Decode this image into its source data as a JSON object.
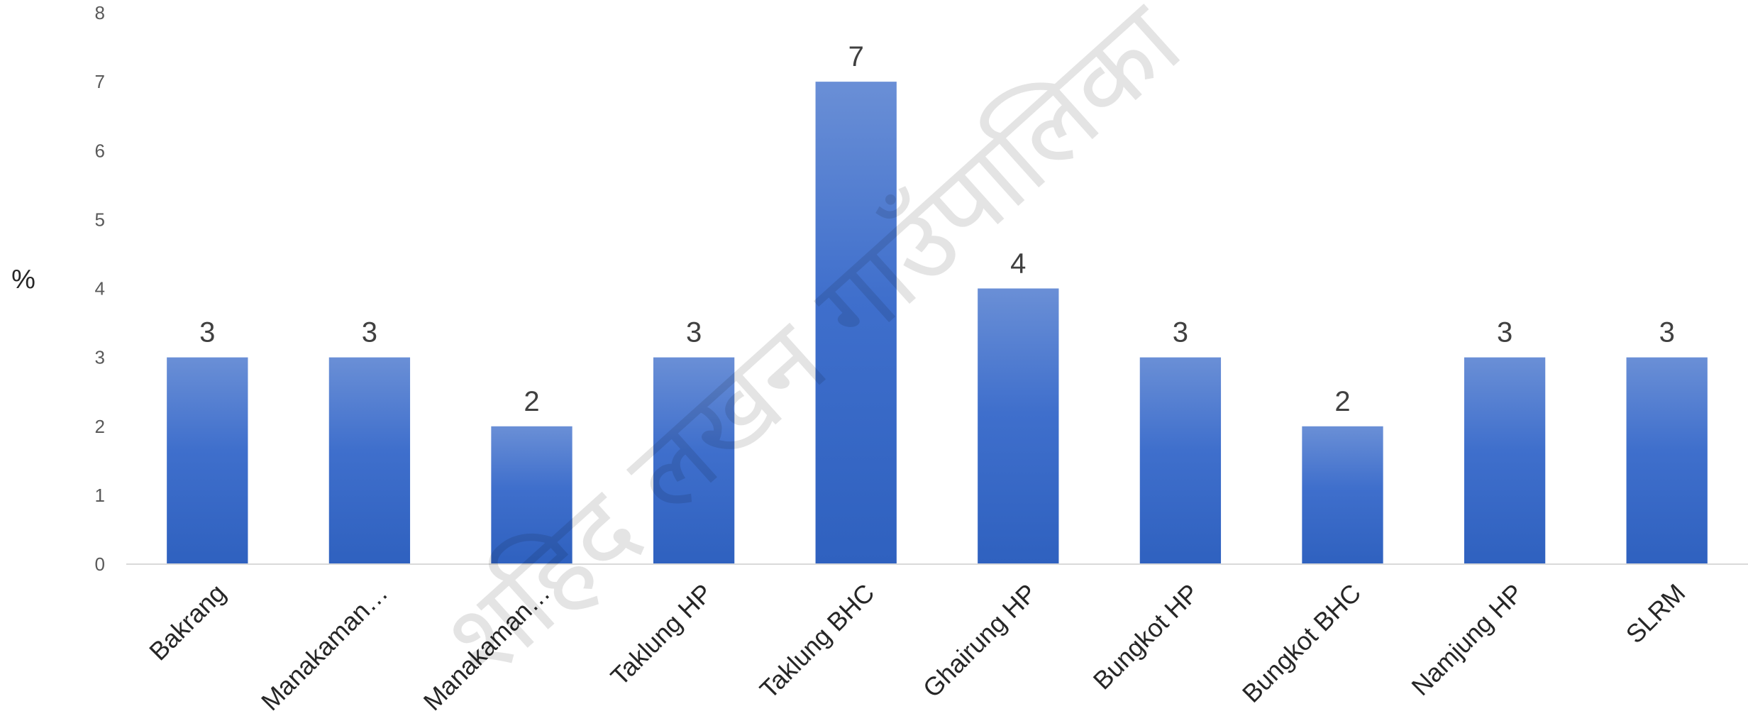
{
  "chart_data": {
    "type": "bar",
    "title": "",
    "xlabel": "",
    "ylabel": "%",
    "ylim": [
      0,
      8
    ],
    "yticks": [
      0,
      1,
      2,
      3,
      4,
      5,
      6,
      7,
      8
    ],
    "grid": false,
    "legend": "none",
    "categories": [
      "Bakrang",
      "Manakaman…",
      "Manakaman…",
      "Taklung HP",
      "Taklung BHC",
      "Ghairung HP",
      "Bungkot HP",
      "Bungkot BHC",
      "Namjung HP",
      "SLRM"
    ],
    "values": [
      3,
      3,
      2,
      3,
      7,
      4,
      3,
      2,
      3,
      3
    ],
    "data_labels": [
      "3",
      "3",
      "2",
      "3",
      "7",
      "4",
      "3",
      "2",
      "3",
      "3"
    ],
    "bar_color_top": "#6a8fd6",
    "bar_color_bottom": "#2f61bf",
    "axis_color": "#d9d9d9"
  },
  "watermark": "शहिद लखन गाउँपालिका"
}
